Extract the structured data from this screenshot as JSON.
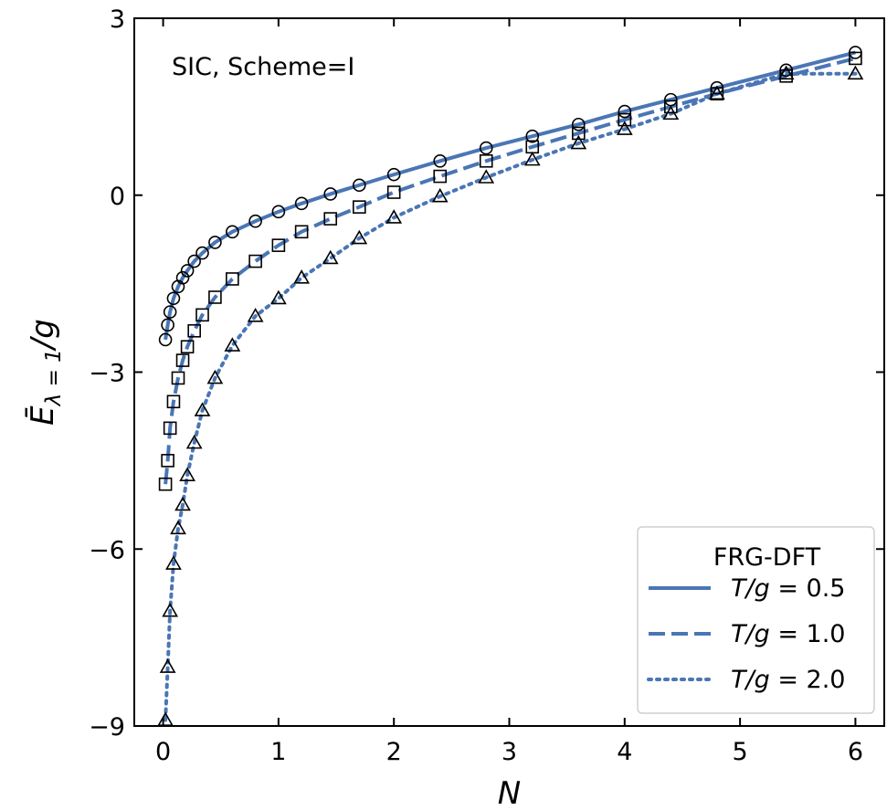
{
  "chart_data": {
    "type": "line",
    "xlabel": "N",
    "ylabel": "Ē_{λ=1}/g",
    "ylabel_main": "Ē",
    "ylabel_sub": "λ = 1",
    "ylabel_tail": "/g",
    "xlim": [
      -0.25,
      6.25
    ],
    "ylim": [
      -9,
      3
    ],
    "xticks": [
      0,
      1,
      2,
      3,
      4,
      5,
      6
    ],
    "yticks": [
      -9,
      -6,
      -3,
      0,
      3
    ],
    "xtick_labels": [
      "0",
      "1",
      "2",
      "3",
      "4",
      "5",
      "6"
    ],
    "ytick_labels": [
      "−9",
      "−6",
      "−3",
      "0",
      "3"
    ],
    "annotation": "SIC, Scheme=I",
    "grid": false,
    "legend": {
      "title": "FRG-DFT",
      "placement": "bottom-right"
    },
    "line_color": "#4a76b5",
    "series": [
      {
        "name": "T/g = 0.5",
        "name_italic": "T/g",
        "name_rest": " = 0.5",
        "linestyle": "solid",
        "marker": "circle",
        "x": [
          0.02,
          0.04,
          0.06,
          0.09,
          0.13,
          0.17,
          0.21,
          0.27,
          0.34,
          0.45,
          0.6,
          0.8,
          1.0,
          1.2,
          1.45,
          1.7,
          2.0,
          2.4,
          2.8,
          3.2,
          3.6,
          4.0,
          4.4,
          4.8,
          5.4,
          6.0
        ],
        "y": [
          -2.45,
          -2.2,
          -1.98,
          -1.75,
          -1.55,
          -1.4,
          -1.28,
          -1.12,
          -0.98,
          -0.8,
          -0.62,
          -0.44,
          -0.28,
          -0.14,
          0.02,
          0.17,
          0.35,
          0.58,
          0.8,
          1.0,
          1.2,
          1.42,
          1.62,
          1.82,
          2.12,
          2.42
        ]
      },
      {
        "name": "T/g = 1.0",
        "name_italic": "T/g",
        "name_rest": " = 1.0",
        "linestyle": "dashed",
        "marker": "square",
        "x": [
          0.02,
          0.04,
          0.06,
          0.09,
          0.13,
          0.17,
          0.21,
          0.27,
          0.34,
          0.45,
          0.6,
          0.8,
          1.0,
          1.2,
          1.45,
          1.7,
          2.0,
          2.4,
          2.8,
          3.2,
          3.6,
          4.0,
          4.4,
          4.8,
          5.4,
          6.0
        ],
        "y": [
          -4.9,
          -4.5,
          -3.95,
          -3.5,
          -3.1,
          -2.8,
          -2.57,
          -2.3,
          -2.03,
          -1.73,
          -1.42,
          -1.12,
          -0.85,
          -0.62,
          -0.4,
          -0.2,
          0.05,
          0.32,
          0.58,
          0.82,
          1.05,
          1.28,
          1.5,
          1.72,
          2.02,
          2.32
        ]
      },
      {
        "name": "T/g = 2.0",
        "name_italic": "T/g",
        "name_rest": " = 2.0",
        "linestyle": "dotted",
        "marker": "triangle",
        "x": [
          0.02,
          0.04,
          0.06,
          0.09,
          0.13,
          0.17,
          0.21,
          0.27,
          0.34,
          0.45,
          0.6,
          0.8,
          1.0,
          1.2,
          1.45,
          1.7,
          2.0,
          2.4,
          2.8,
          3.2,
          3.6,
          4.0,
          4.4,
          4.8,
          5.4,
          6.0
        ],
        "y": [
          -8.9,
          -8.0,
          -7.05,
          -6.25,
          -5.65,
          -5.25,
          -4.75,
          -4.2,
          -3.65,
          -3.1,
          -2.55,
          -2.05,
          -1.75,
          -1.4,
          -1.07,
          -0.73,
          -0.38,
          -0.02,
          0.3,
          0.6,
          0.88,
          1.12,
          1.38,
          1.72,
          2.06,
          2.06
        ]
      }
    ]
  }
}
